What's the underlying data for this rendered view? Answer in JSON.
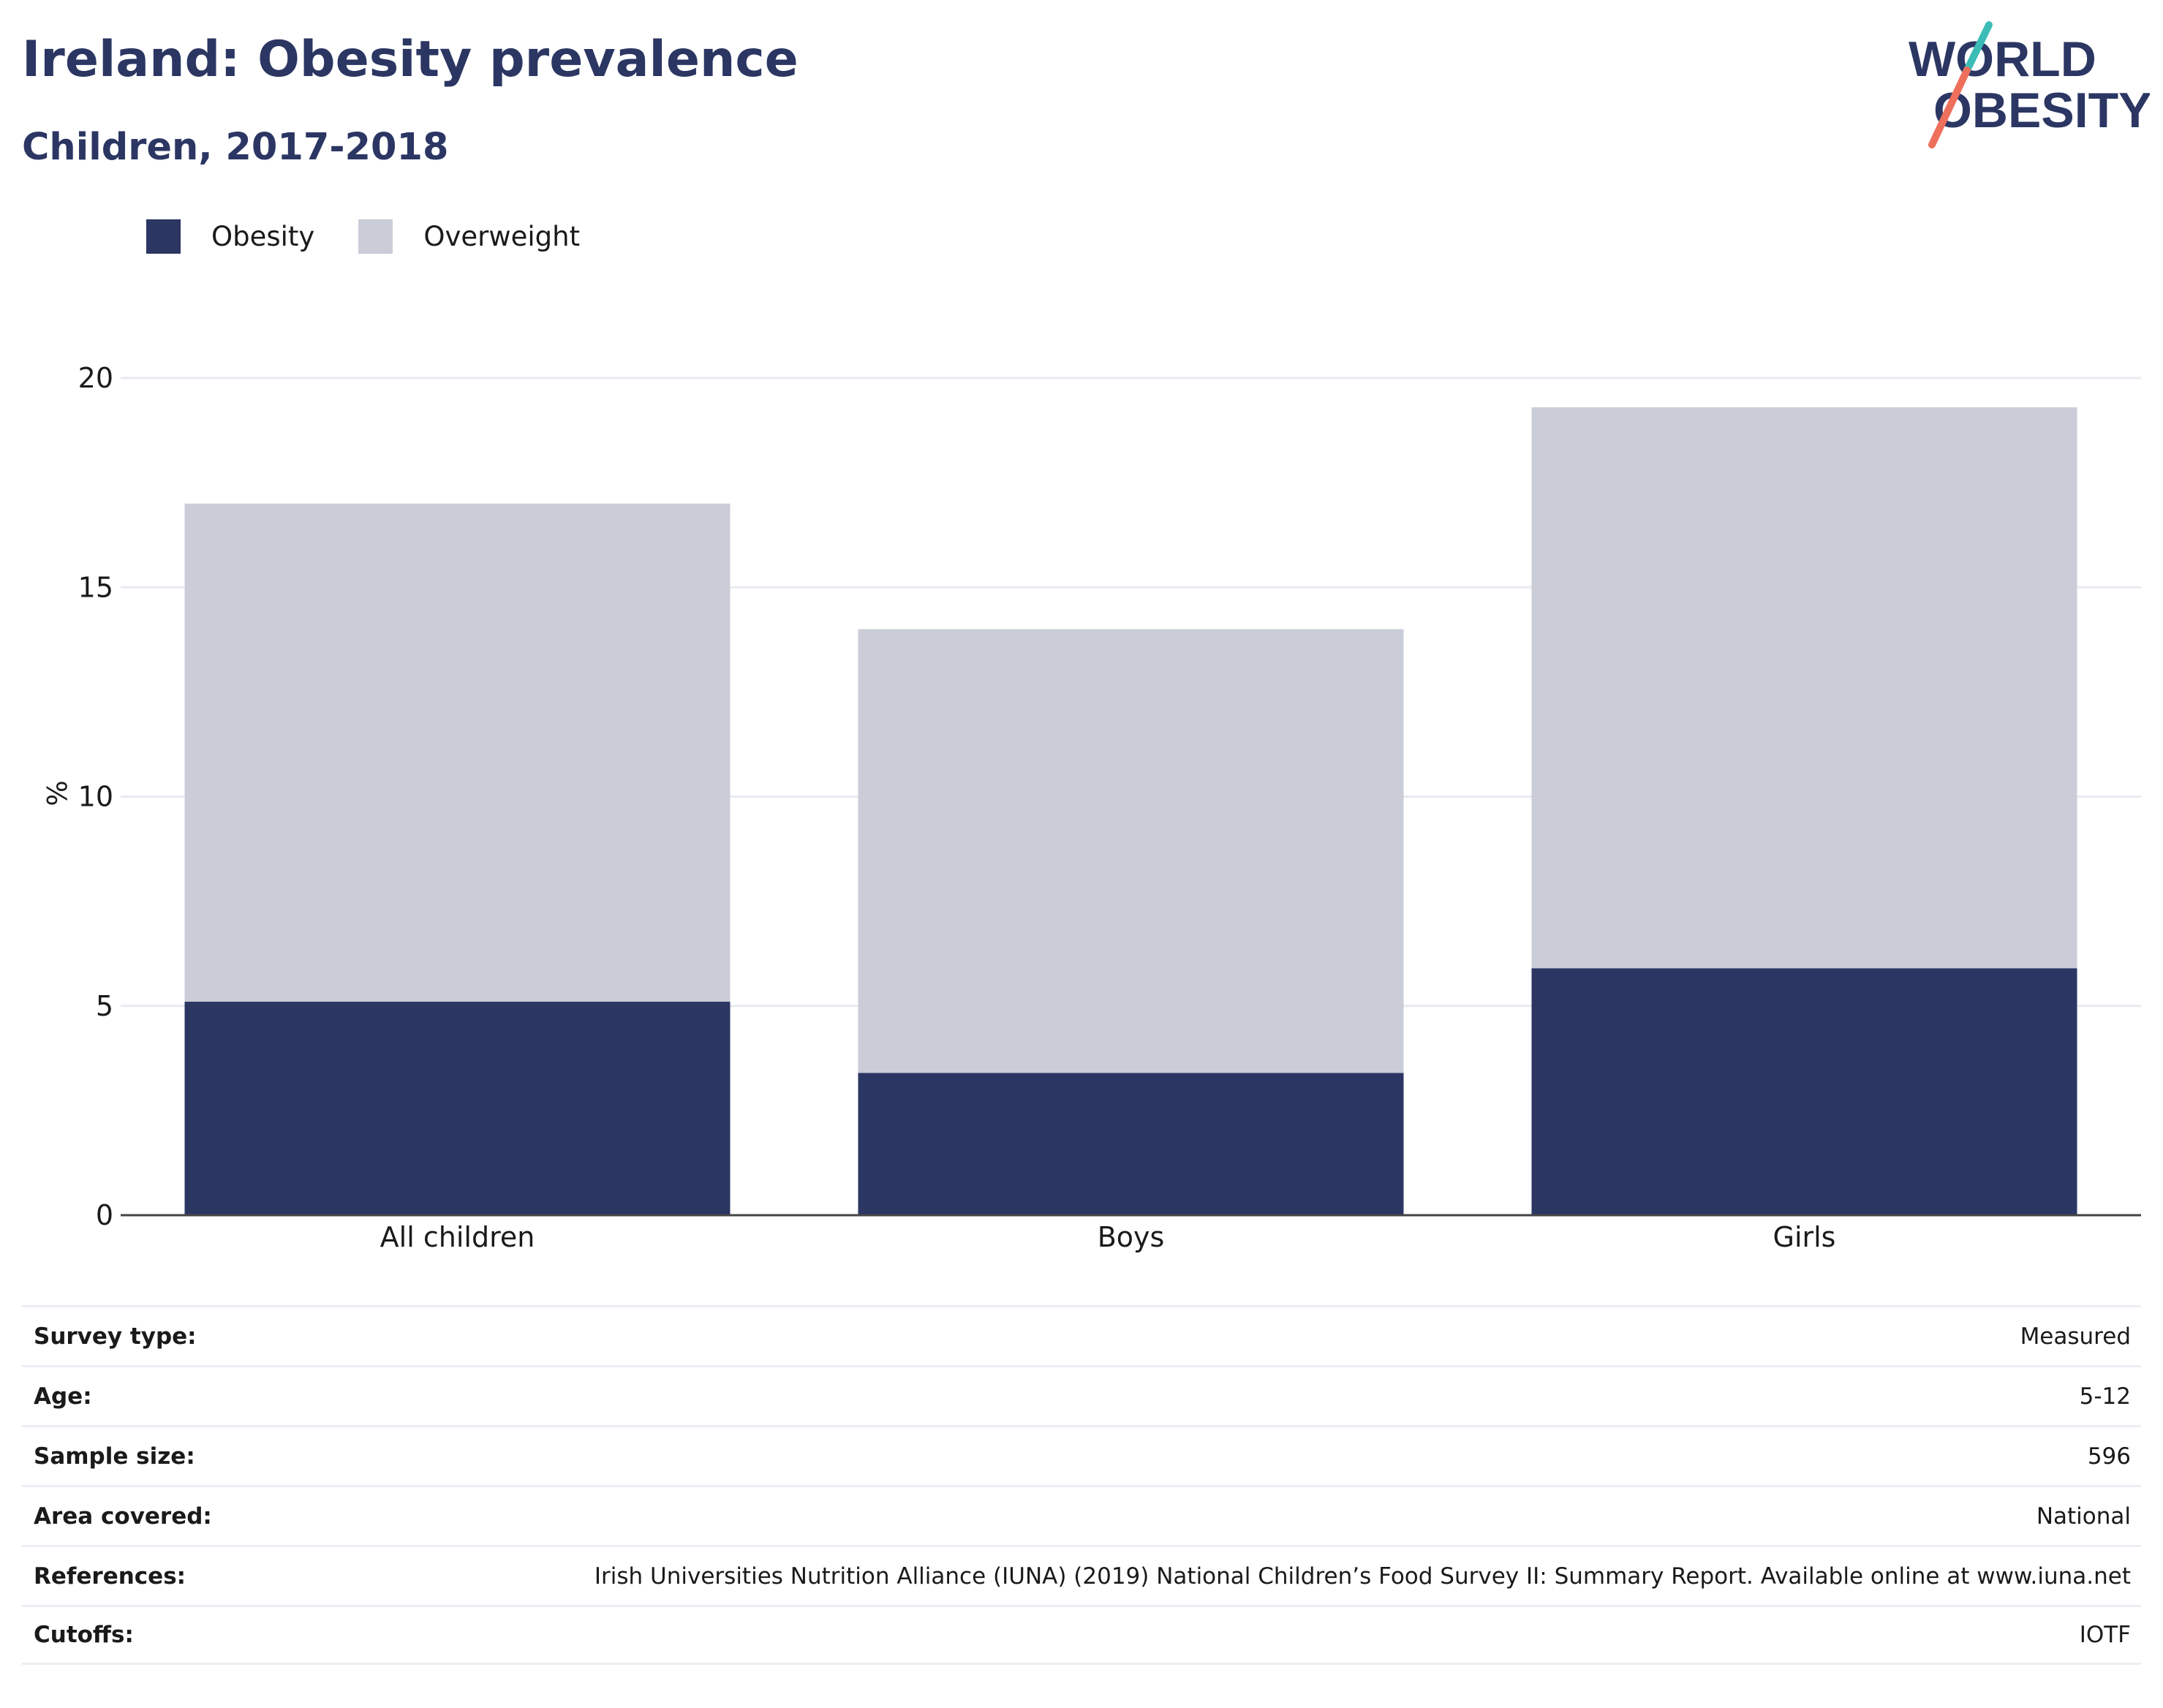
{
  "header": {
    "title": "Ireland: Obesity prevalence",
    "subtitle": "Children, 2017-2018"
  },
  "logo": {
    "line1": "WORLD",
    "line2": "OBESITY",
    "colors": {
      "text": "#2b3663",
      "slash_top": "#3bbcb6",
      "slash_bottom": "#ee6f5c"
    }
  },
  "legend": {
    "items": [
      {
        "label": "Obesity",
        "color": "#2b3663"
      },
      {
        "label": "Overweight",
        "color": "#caccd7"
      }
    ]
  },
  "chart_data": {
    "type": "bar",
    "stacked": true,
    "categories": [
      "All children",
      "Boys",
      "Girls"
    ],
    "series": [
      {
        "name": "Obesity",
        "color": "#2b3663",
        "values": [
          5.1,
          3.4,
          5.9
        ]
      },
      {
        "name": "Overweight",
        "color": "#caccd7",
        "values": [
          11.9,
          10.6,
          13.4
        ]
      }
    ],
    "totals": [
      17.0,
      14.0,
      19.3
    ],
    "ylabel": "%",
    "ylim": [
      0,
      20
    ],
    "yticks": [
      0,
      5,
      10,
      15,
      20
    ],
    "grid": true,
    "legend_position": "top-left"
  },
  "info_table": {
    "rows": [
      {
        "key": "Survey type:",
        "value": "Measured"
      },
      {
        "key": "Age:",
        "value": "5-12"
      },
      {
        "key": "Sample size:",
        "value": "596"
      },
      {
        "key": "Area covered:",
        "value": "National"
      },
      {
        "key": "References:",
        "value": "Irish Universities Nutrition Alliance (IUNA) (2019) National Children’s Food Survey II: Summary Report. Available online at www.iuna.net"
      },
      {
        "key": "Cutoffs:",
        "value": "IOTF"
      }
    ]
  }
}
